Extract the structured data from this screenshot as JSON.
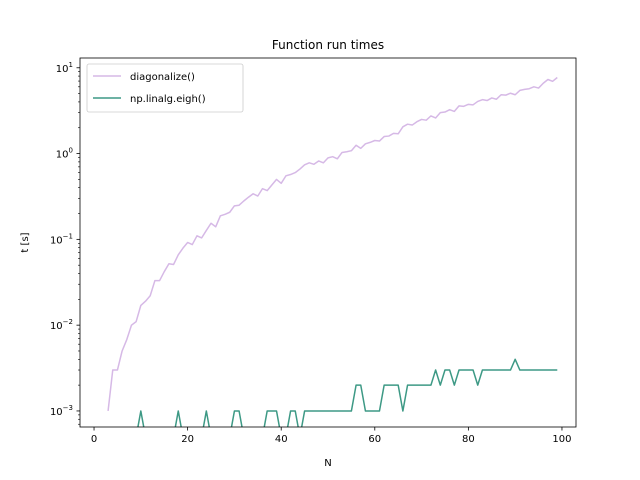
{
  "chart_data": {
    "type": "line",
    "title": "Function run times",
    "xlabel": "N",
    "ylabel": "t [s]",
    "xlim": [
      -3,
      103
    ],
    "ylim": [
      0.00065,
      13
    ],
    "yscale": "log",
    "xticks": [
      0,
      20,
      40,
      60,
      80,
      100
    ],
    "yticks": [
      {
        "value": 0.001,
        "base": "10",
        "exp": "−3"
      },
      {
        "value": 0.01,
        "base": "10",
        "exp": "−2"
      },
      {
        "value": 0.1,
        "base": "10",
        "exp": "−1"
      },
      {
        "value": 1,
        "base": "10",
        "exp": "0"
      },
      {
        "value": 10,
        "base": "10",
        "exp": "1"
      }
    ],
    "legend_position": "upper-left",
    "series": [
      {
        "name": "diagonalize()",
        "color": "#d6b9e6",
        "points": [
          [
            3,
            0.001
          ],
          [
            4,
            0.003
          ],
          [
            5,
            0.003
          ],
          [
            6,
            0.005
          ],
          [
            7,
            0.0068
          ],
          [
            8,
            0.01
          ],
          [
            9,
            0.011
          ],
          [
            10,
            0.017
          ],
          [
            11,
            0.019
          ],
          [
            12,
            0.022
          ],
          [
            13,
            0.033
          ],
          [
            14,
            0.033
          ],
          [
            15,
            0.042
          ],
          [
            16,
            0.052
          ],
          [
            17,
            0.051
          ],
          [
            18,
            0.066
          ],
          [
            19,
            0.079
          ],
          [
            20,
            0.092
          ],
          [
            21,
            0.087
          ],
          [
            22,
            0.11
          ],
          [
            23,
            0.104
          ],
          [
            24,
            0.127
          ],
          [
            25,
            0.154
          ],
          [
            26,
            0.14
          ],
          [
            27,
            0.188
          ],
          [
            28,
            0.196
          ],
          [
            29,
            0.207
          ],
          [
            30,
            0.246
          ],
          [
            31,
            0.25
          ],
          [
            32,
            0.28
          ],
          [
            33,
            0.31
          ],
          [
            34,
            0.34
          ],
          [
            35,
            0.32
          ],
          [
            36,
            0.39
          ],
          [
            37,
            0.37
          ],
          [
            38,
            0.43
          ],
          [
            39,
            0.5
          ],
          [
            40,
            0.45
          ],
          [
            41,
            0.55
          ],
          [
            42,
            0.57
          ],
          [
            43,
            0.6
          ],
          [
            44,
            0.66
          ],
          [
            45,
            0.74
          ],
          [
            46,
            0.78
          ],
          [
            47,
            0.75
          ],
          [
            48,
            0.82
          ],
          [
            49,
            0.78
          ],
          [
            50,
            0.89
          ],
          [
            51,
            0.92
          ],
          [
            52,
            0.87
          ],
          [
            53,
            1.03
          ],
          [
            54,
            1.05
          ],
          [
            55,
            1.08
          ],
          [
            56,
            1.25
          ],
          [
            57,
            1.15
          ],
          [
            58,
            1.3
          ],
          [
            59,
            1.35
          ],
          [
            60,
            1.42
          ],
          [
            61,
            1.4
          ],
          [
            62,
            1.58
          ],
          [
            63,
            1.6
          ],
          [
            64,
            1.72
          ],
          [
            65,
            1.7
          ],
          [
            66,
            2.05
          ],
          [
            67,
            2.2
          ],
          [
            68,
            2.15
          ],
          [
            69,
            2.35
          ],
          [
            70,
            2.5
          ],
          [
            71,
            2.45
          ],
          [
            72,
            2.75
          ],
          [
            73,
            2.6
          ],
          [
            74,
            3.0
          ],
          [
            75,
            3.05
          ],
          [
            76,
            3.25
          ],
          [
            77,
            3.1
          ],
          [
            78,
            3.6
          ],
          [
            79,
            3.55
          ],
          [
            80,
            3.75
          ],
          [
            81,
            3.7
          ],
          [
            82,
            4.05
          ],
          [
            83,
            4.25
          ],
          [
            84,
            4.15
          ],
          [
            85,
            4.45
          ],
          [
            86,
            4.3
          ],
          [
            87,
            4.85
          ],
          [
            88,
            4.8
          ],
          [
            89,
            5.05
          ],
          [
            90,
            4.85
          ],
          [
            91,
            5.45
          ],
          [
            92,
            5.6
          ],
          [
            93,
            5.7
          ],
          [
            94,
            6.0
          ],
          [
            95,
            5.8
          ],
          [
            96,
            6.6
          ],
          [
            97,
            7.3
          ],
          [
            98,
            6.95
          ],
          [
            99,
            7.7
          ]
        ]
      },
      {
        "name": "np.linalg.eigh()",
        "color": "#3d9985",
        "points": [
          [
            9,
            0.0005
          ],
          [
            10,
            0.001
          ],
          [
            11,
            0.0005
          ],
          [
            17,
            0.0005
          ],
          [
            18,
            0.001
          ],
          [
            19,
            0.0005
          ],
          [
            23,
            0.0005
          ],
          [
            24,
            0.001
          ],
          [
            25,
            0.0005
          ],
          [
            29,
            0.0005
          ],
          [
            30,
            0.001
          ],
          [
            31,
            0.001
          ],
          [
            32,
            0.0005
          ],
          [
            36,
            0.0005
          ],
          [
            37,
            0.001
          ],
          [
            38,
            0.001
          ],
          [
            39,
            0.001
          ],
          [
            40,
            0.0005
          ],
          [
            41,
            0.0005
          ],
          [
            42,
            0.001
          ],
          [
            43,
            0.001
          ],
          [
            44,
            0.0005
          ],
          [
            45,
            0.001
          ],
          [
            46,
            0.001
          ],
          [
            47,
            0.001
          ],
          [
            48,
            0.001
          ],
          [
            49,
            0.001
          ],
          [
            50,
            0.001
          ],
          [
            51,
            0.001
          ],
          [
            52,
            0.001
          ],
          [
            53,
            0.001
          ],
          [
            54,
            0.001
          ],
          [
            55,
            0.001
          ],
          [
            56,
            0.002
          ],
          [
            57,
            0.002
          ],
          [
            58,
            0.001
          ],
          [
            59,
            0.001
          ],
          [
            60,
            0.001
          ],
          [
            61,
            0.001
          ],
          [
            62,
            0.002
          ],
          [
            63,
            0.002
          ],
          [
            64,
            0.002
          ],
          [
            65,
            0.002
          ],
          [
            66,
            0.001
          ],
          [
            67,
            0.002
          ],
          [
            68,
            0.002
          ],
          [
            69,
            0.002
          ],
          [
            70,
            0.002
          ],
          [
            71,
            0.002
          ],
          [
            72,
            0.002
          ],
          [
            73,
            0.003
          ],
          [
            74,
            0.002
          ],
          [
            75,
            0.003
          ],
          [
            76,
            0.003
          ],
          [
            77,
            0.002
          ],
          [
            78,
            0.003
          ],
          [
            79,
            0.003
          ],
          [
            80,
            0.003
          ],
          [
            81,
            0.003
          ],
          [
            82,
            0.002
          ],
          [
            83,
            0.003
          ],
          [
            84,
            0.003
          ],
          [
            85,
            0.003
          ],
          [
            86,
            0.003
          ],
          [
            87,
            0.003
          ],
          [
            88,
            0.003
          ],
          [
            89,
            0.003
          ],
          [
            90,
            0.004
          ],
          [
            91,
            0.003
          ],
          [
            92,
            0.003
          ],
          [
            93,
            0.003
          ],
          [
            94,
            0.003
          ],
          [
            95,
            0.003
          ],
          [
            96,
            0.003
          ],
          [
            97,
            0.003
          ],
          [
            98,
            0.003
          ],
          [
            99,
            0.003
          ]
        ]
      }
    ]
  }
}
